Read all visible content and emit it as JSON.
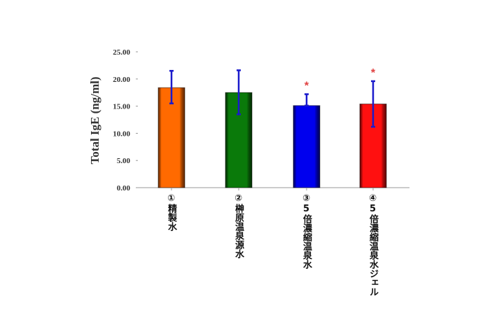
{
  "chart_data": {
    "type": "bar",
    "title": "",
    "xlabel": "",
    "ylabel": "Total IgE (ng/ml)",
    "ylim": [
      0,
      25
    ],
    "yticks": [
      "0.00",
      "5.00",
      "10.00",
      "15.00",
      "20.00",
      "25.00"
    ],
    "grid": false,
    "categories": [
      "①精製水",
      "②榊原温泉源水",
      "③5倍濃縮温泉水",
      "④5倍濃縮温泉水ジェル"
    ],
    "values": [
      18.4,
      17.5,
      15.1,
      15.4
    ],
    "error_upper": [
      21.5,
      21.6,
      17.2,
      19.6
    ],
    "error_lower": [
      15.5,
      13.5,
      15.1,
      11.2
    ],
    "significance": [
      "",
      "",
      "*",
      "*"
    ],
    "colors": [
      "#ff6a00",
      "#0a7a0a",
      "#0000ee",
      "#ff1010"
    ],
    "error_bar_color": "#1a1acc"
  }
}
